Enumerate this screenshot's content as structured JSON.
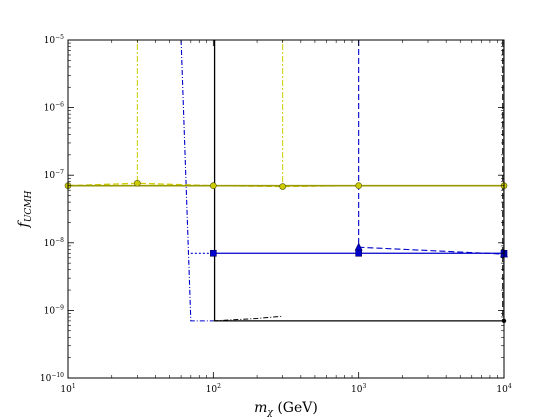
{
  "chart_data": {
    "type": "line",
    "xscale": "log",
    "yscale": "log",
    "xlim": [
      10,
      10000
    ],
    "ylim": [
      1e-10,
      1e-05
    ],
    "grid": false,
    "xlabel_main": "m",
    "xlabel_sub": "χ",
    "xlabel_unit": " (GeV)",
    "ylabel_main": "f",
    "ylabel_sub": "UCMH",
    "xticks": [
      {
        "value": 10,
        "base": "10",
        "exp": "1"
      },
      {
        "value": 100,
        "base": "10",
        "exp": "2"
      },
      {
        "value": 1000,
        "base": "10",
        "exp": "3"
      },
      {
        "value": 10000,
        "base": "10",
        "exp": "4"
      }
    ],
    "yticks": [
      {
        "value": 1e-10,
        "base": "10",
        "exp": "−10"
      },
      {
        "value": 1e-09,
        "base": "10",
        "exp": "−9"
      },
      {
        "value": 1e-08,
        "base": "10",
        "exp": "−8"
      },
      {
        "value": 1e-07,
        "base": "10",
        "exp": "−7"
      },
      {
        "value": 1e-06,
        "base": "10",
        "exp": "−6"
      },
      {
        "value": 1e-05,
        "base": "10",
        "exp": "−5"
      }
    ],
    "series": [
      {
        "color": "#000000",
        "dash": "",
        "width": 1.3,
        "marker": "none",
        "points": [
          [
            100,
            1e-05
          ],
          [
            100,
            0.0001
          ],
          [
            102,
            1e-05
          ],
          [
            102,
            7e-10
          ],
          [
            10000,
            7e-10
          ],
          [
            10000,
            1e-05
          ]
        ]
      },
      {
        "color": "#000000",
        "dash": "6,3",
        "width": 1.0,
        "marker": "none",
        "points": [
          [
            9800,
            1e-05
          ],
          [
            9800,
            7e-10
          ]
        ]
      },
      {
        "color": "#000000",
        "dash": "5,2,1,2",
        "width": 1.0,
        "marker": "none",
        "points": [
          [
            100,
            7e-10
          ],
          [
            200,
            7.6e-10
          ],
          [
            300,
            8.2e-10
          ]
        ]
      },
      {
        "color": "#0000cc",
        "dash": "5,2,1,2",
        "width": 1.1,
        "marker": "none",
        "points": [
          [
            60,
            1e-05
          ],
          [
            70,
            7e-10
          ],
          [
            100,
            7e-10
          ]
        ]
      },
      {
        "color": "#0000cc",
        "dash": "2,2",
        "width": 1.1,
        "marker": "none",
        "points": [
          [
            70,
            7e-09
          ],
          [
            100,
            7e-09
          ]
        ]
      },
      {
        "color": "#0000cc",
        "dash": "",
        "width": 1.3,
        "marker": "square",
        "points": [
          [
            100,
            7e-09
          ],
          [
            1000,
            7e-09
          ],
          [
            10000,
            7e-09
          ]
        ]
      },
      {
        "color": "#0000cc",
        "dash": "6,3",
        "width": 1.1,
        "marker": "triangle",
        "points": [
          [
            1000,
            1e-05
          ],
          [
            1000,
            8.6e-09
          ],
          [
            10000,
            6.8e-09
          ]
        ]
      },
      {
        "color": "#cccc00",
        "dash": "2,2,6,2",
        "width": 1.0,
        "marker": "none",
        "points": [
          [
            30,
            1e-05
          ],
          [
            30,
            7.6e-08
          ]
        ]
      },
      {
        "color": "#cccc00",
        "dash": "2,2,6,2",
        "width": 1.0,
        "marker": "none",
        "points": [
          [
            300,
            1e-05
          ],
          [
            300,
            7e-08
          ]
        ]
      },
      {
        "color": "#cccc00",
        "dash": "6,3",
        "width": 1.3,
        "marker": "circle",
        "points": [
          [
            10,
            7e-08
          ],
          [
            30,
            7.6e-08
          ],
          [
            100,
            7e-08
          ],
          [
            300,
            6.8e-08
          ],
          [
            1000,
            7e-08
          ],
          [
            10000,
            7e-08
          ]
        ]
      },
      {
        "color": "#999900",
        "dash": "",
        "width": 1.6,
        "marker": "none",
        "points": [
          [
            10,
            7e-08
          ],
          [
            10000,
            7e-08
          ]
        ]
      }
    ]
  }
}
